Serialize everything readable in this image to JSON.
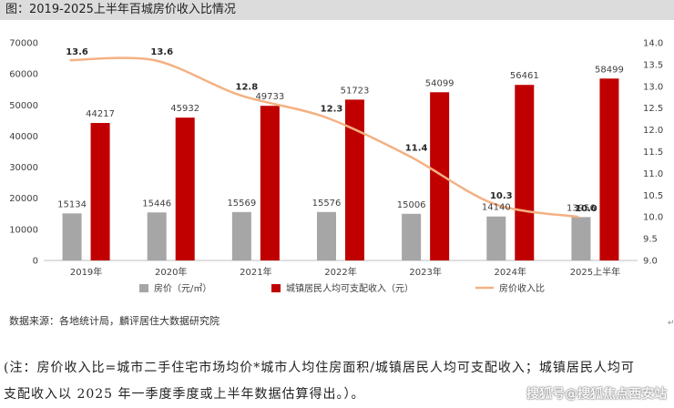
{
  "figure_title": "图：2019-2025上半年百城房价收入比情况",
  "source": "数据来源：各地统计局，麟评居住大数据研究院",
  "return_mark": "↵",
  "note_line1": "(注：房价收入比=城市二手住宅市场均价*城市人均住房面积/城镇居民人均可支配收入；城镇居民人均可",
  "note_line2": "支配收入以 2025 年一季度季度或上半年数据估算得出。）。",
  "watermark": "搜狐号@搜狐焦点西安站",
  "colors": {
    "price_bar": "#a6a6a6",
    "income_bar": "#c00000",
    "ratio_line": "#f4b183"
  },
  "chart_data": {
    "type": "bar",
    "categories": [
      "2019年",
      "2020年",
      "2021年",
      "2022年",
      "2023年",
      "2024年",
      "2025上半年"
    ],
    "series": [
      {
        "name": "房价（元/㎡）",
        "kind": "bar",
        "axis": "left",
        "values": [
          15134,
          15446,
          15569,
          15576,
          15006,
          14140,
          13956
        ]
      },
      {
        "name": "城镇居民人均可支配收入（元）",
        "kind": "bar",
        "axis": "left",
        "values": [
          44217,
          45932,
          49733,
          51723,
          54099,
          56461,
          58499
        ]
      },
      {
        "name": "房价收入比",
        "kind": "line",
        "axis": "right",
        "values": [
          13.6,
          13.6,
          12.8,
          12.3,
          11.4,
          10.3,
          10.0
        ]
      }
    ],
    "y_left": {
      "range": [
        0,
        70000
      ],
      "ticks": [
        "0",
        "10000",
        "20000",
        "30000",
        "40000",
        "50000",
        "60000",
        "70000"
      ]
    },
    "y_right": {
      "range": [
        9.0,
        14.0
      ],
      "ticks": [
        "9.0",
        "9.5",
        "10.0",
        "10.5",
        "11.0",
        "11.5",
        "12.0",
        "12.5",
        "13.0",
        "13.5",
        "14.0"
      ]
    },
    "grid": false,
    "legend_position": "bottom"
  }
}
